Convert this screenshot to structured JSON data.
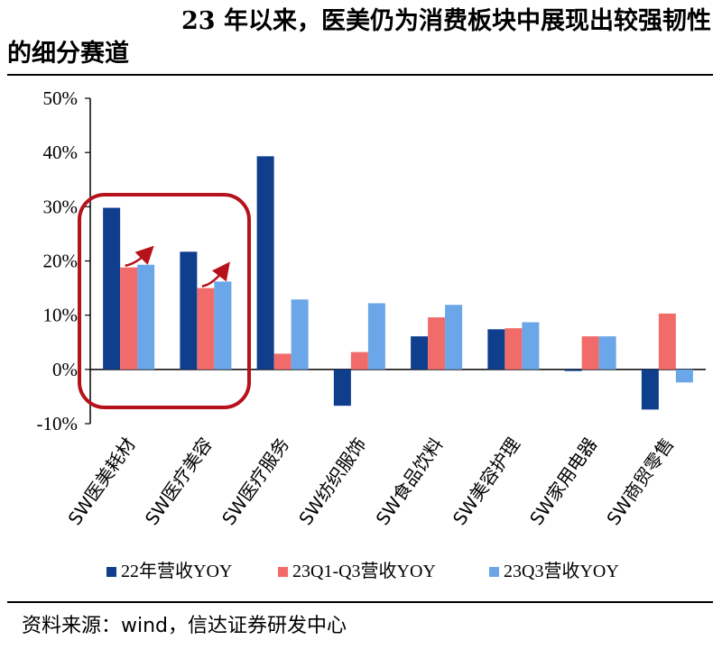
{
  "header": {
    "title_line1": "23 年以来，医美仍为消费板块中展现出较强韧性",
    "title_line2": "的细分赛道"
  },
  "footer": {
    "source": "资料来源：wind，信达证券研发中心"
  },
  "chart_data": {
    "type": "bar",
    "title": "23 年以来，医美仍为消费板块中展现出较强韧性的细分赛道",
    "xlabel": "",
    "ylabel": "",
    "ylim": [
      -10,
      50
    ],
    "yticks": [
      "-10%",
      "0%",
      "10%",
      "20%",
      "30%",
      "40%",
      "50%"
    ],
    "categories": [
      "SW医美耗材",
      "SW医疗美容",
      "SW医疗服务",
      "SW纺织服饰",
      "SW食品饮料",
      "SW美容护理",
      "SW家用电器",
      "SW商贸零售"
    ],
    "series": [
      {
        "name": "22年营收YOY",
        "color": "#0f3f8c",
        "values": [
          29.8,
          21.7,
          39.3,
          -6.7,
          6.1,
          7.4,
          -0.3,
          -7.4
        ]
      },
      {
        "name": "23Q1-Q3营收YOY",
        "color": "#f26b6b",
        "values": [
          18.8,
          15.0,
          2.9,
          3.2,
          9.6,
          7.6,
          6.1,
          10.3
        ]
      },
      {
        "name": "23Q3营收YOY",
        "color": "#6aa6e8",
        "values": [
          19.3,
          16.2,
          12.9,
          12.2,
          11.9,
          8.7,
          6.1,
          -2.4
        ]
      }
    ],
    "grid": false,
    "legend_position": "bottom",
    "annotations": {
      "highlight_box_color": "#b5121b",
      "arrow_color": "#b5121b"
    }
  }
}
